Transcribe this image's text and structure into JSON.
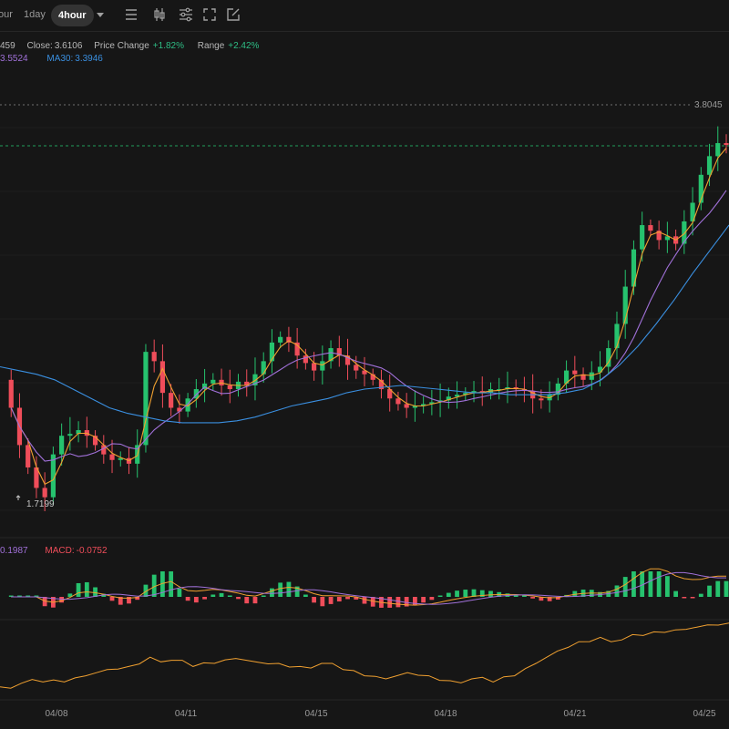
{
  "toolbar": {
    "intervals": [
      "our",
      "1day",
      "4hour"
    ],
    "active_interval": "4hour",
    "icons": [
      "dropdown-icon",
      "menu-icon",
      "candlestick-icon",
      "sliders-icon",
      "fullscreen-icon",
      "edit-icon"
    ]
  },
  "info": {
    "open_fragment": "459",
    "close_label": "Close:",
    "close_value": "3.6106",
    "change_label": "Price Change",
    "change_value": "+1.82%",
    "range_label": "Range",
    "range_value": "+2.42%",
    "ma_fragment": "3.5524",
    "ma30_label": "MA30:",
    "ma30_value": "3.3946",
    "macd_fragment": "0.1987",
    "macd_label": "MACD:",
    "macd_value": "-0.0752"
  },
  "colors": {
    "up": "#26c26e",
    "down": "#ef4d5a",
    "ma_short": "#f0a030",
    "ma_mid": "#a070d8",
    "ma30": "#3a8fe0",
    "up_text": "#2ebd85",
    "macd_text": "#ef4d5a",
    "ma30_text": "#3a8fe0",
    "ma_text": "#a070d8"
  },
  "chart_data": {
    "type": "candlestick",
    "high_label": "3.8045",
    "low_label": "1.7199",
    "x_tick_labels": [
      "04/08",
      "04/11",
      "04/15",
      "04/18",
      "04/21",
      "04/25"
    ],
    "price_path": [
      2.35,
      2.2,
      2.0,
      1.88,
      1.77,
      1.72,
      1.95,
      2.05,
      2.06,
      2.08,
      2.05,
      2.0,
      1.95,
      1.92,
      1.93,
      1.9,
      2.0,
      2.5,
      2.45,
      2.28,
      2.2,
      2.18,
      2.25,
      2.3,
      2.33,
      2.35,
      2.32,
      2.3,
      2.34,
      2.32,
      2.38,
      2.45,
      2.55,
      2.58,
      2.55,
      2.48,
      2.44,
      2.4,
      2.45,
      2.52,
      2.48,
      2.43,
      2.4,
      2.38,
      2.35,
      2.3,
      2.25,
      2.22,
      2.2,
      2.21,
      2.22,
      2.23,
      2.24,
      2.26,
      2.27,
      2.28,
      2.29,
      2.28,
      2.3,
      2.3,
      2.31,
      2.3,
      2.29,
      2.25,
      2.24,
      2.27,
      2.33,
      2.4,
      2.38,
      2.35,
      2.39,
      2.42,
      2.52,
      2.65,
      2.85,
      3.05,
      3.18,
      3.15,
      3.1,
      3.12,
      3.08,
      3.2,
      3.3,
      3.45,
      3.55,
      3.62,
      3.61
    ],
    "ma30_path": [
      2.42,
      2.4,
      2.38,
      2.35,
      2.3,
      2.25,
      2.2,
      2.17,
      2.15,
      2.13,
      2.12,
      2.12,
      2.12,
      2.13,
      2.15,
      2.18,
      2.21,
      2.23,
      2.25,
      2.28,
      2.3,
      2.31,
      2.32,
      2.31,
      2.3,
      2.29,
      2.28,
      2.28,
      2.27,
      2.27,
      2.27,
      2.28,
      2.3,
      2.35,
      2.43,
      2.53,
      2.65,
      2.78,
      2.92,
      3.05,
      3.18
    ],
    "volume_path": [
      0.12,
      0.18,
      0.2,
      0.2,
      0.3,
      0.4,
      0.45,
      0.6,
      0.55,
      0.45,
      0.5,
      0.58,
      0.52,
      0.5,
      0.45,
      0.5,
      0.4,
      0.3,
      0.25,
      0.35,
      0.3,
      0.22,
      0.25,
      0.2,
      0.3,
      0.5,
      0.7,
      0.85,
      0.92,
      0.88,
      0.95,
      1.0,
      1.05,
      1.12,
      1.15
    ],
    "price_ylim": [
      1.65,
      3.85
    ]
  }
}
